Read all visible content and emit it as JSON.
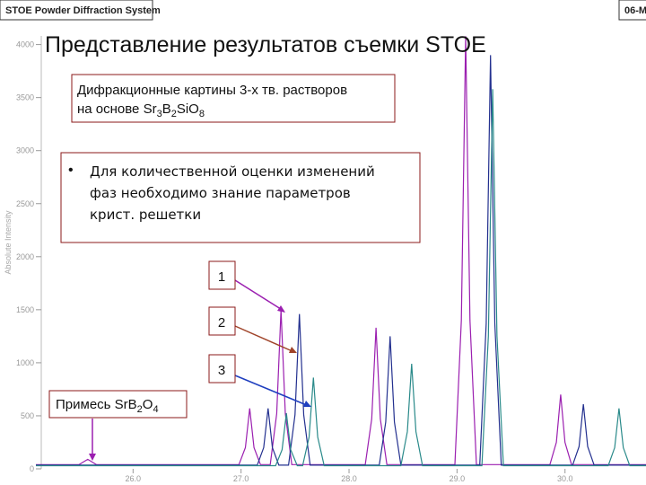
{
  "chart_data": {
    "type": "line",
    "header": "STOE Powder Diffraction System",
    "header_right": "06-M",
    "ylabel": "Absolute Intensity",
    "title": "Представление результатов съемки STOE",
    "caption": {
      "line1": "Дифракционные картины 3-х тв. растворов",
      "line2": [
        "на основе Sr",
        "3",
        "B",
        "2",
        "SiO",
        "8"
      ]
    },
    "bullet": [
      "Для количественной оценки изменений",
      "фаз необходимо знание параметров",
      "крист. решетки"
    ],
    "labels": [
      "1",
      "2",
      "3"
    ],
    "impurity": [
      "Примесь SrB",
      "2",
      "O",
      "4"
    ],
    "xlim": [
      25.1,
      30.75
    ],
    "ylim": [
      0,
      4420
    ],
    "xticks": [
      {
        "value": 26,
        "label": "26.0"
      },
      {
        "value": 27,
        "label": "27.0"
      },
      {
        "value": 28,
        "label": "28.0"
      },
      {
        "value": 29,
        "label": "29.0"
      },
      {
        "value": 30,
        "label": "30.0"
      }
    ],
    "yticks": [
      0,
      500,
      1000,
      1500,
      2000,
      2500,
      3000,
      3500,
      4000
    ],
    "series": [
      {
        "name": "1",
        "color": "#9b1fb0",
        "x": [
          25.1,
          25.5,
          25.58,
          25.66,
          26.98,
          27.04,
          27.08,
          27.12,
          27.18,
          27.27,
          27.33,
          27.37,
          27.41,
          27.47,
          28.15,
          28.21,
          28.25,
          28.29,
          28.35,
          28.98,
          29.04,
          29.08,
          29.12,
          29.18,
          29.86,
          29.92,
          29.96,
          30.0,
          30.06,
          30.75
        ],
        "values": [
          40,
          40,
          90,
          40,
          40,
          200,
          570,
          200,
          40,
          40,
          520,
          1500,
          520,
          40,
          40,
          470,
          1330,
          470,
          40,
          40,
          1400,
          4080,
          1400,
          40,
          40,
          250,
          700,
          250,
          40,
          40
        ]
      },
      {
        "name": "2",
        "color": "#23308f",
        "x": [
          25.1,
          27.15,
          27.21,
          27.25,
          27.29,
          27.35,
          27.44,
          27.5,
          27.54,
          27.58,
          27.64,
          28.28,
          28.34,
          28.38,
          28.42,
          28.48,
          29.21,
          29.27,
          29.31,
          29.35,
          29.41,
          30.07,
          30.13,
          30.17,
          30.21,
          30.27,
          30.75
        ],
        "values": [
          35,
          35,
          200,
          570,
          200,
          35,
          35,
          510,
          1460,
          510,
          35,
          35,
          440,
          1250,
          440,
          35,
          35,
          1370,
          3900,
          1370,
          35,
          35,
          210,
          610,
          210,
          35,
          35
        ]
      },
      {
        "name": "3",
        "color": "#2a8a8a",
        "x": [
          25.1,
          27.32,
          27.38,
          27.42,
          27.46,
          27.52,
          27.57,
          27.63,
          27.67,
          27.71,
          27.77,
          28.48,
          28.54,
          28.58,
          28.62,
          28.68,
          29.23,
          29.29,
          29.33,
          29.37,
          29.43,
          30.4,
          30.46,
          30.5,
          30.54,
          30.6,
          30.75
        ],
        "values": [
          30,
          30,
          180,
          525,
          180,
          30,
          30,
          300,
          860,
          300,
          30,
          30,
          350,
          990,
          350,
          30,
          30,
          1250,
          3580,
          1250,
          30,
          30,
          200,
          570,
          200,
          30,
          30
        ]
      }
    ]
  }
}
